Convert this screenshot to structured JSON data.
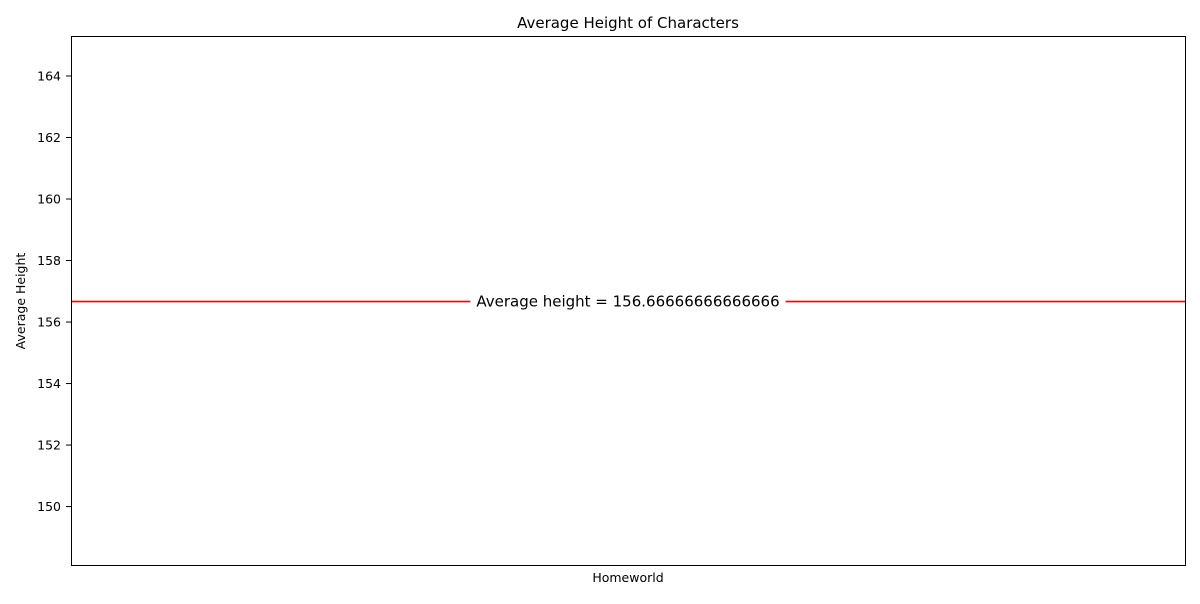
{
  "chart_data": {
    "type": "line",
    "title": "Average Height of Characters",
    "xlabel": "Homeworld",
    "ylabel": "Average Height",
    "ylim": [
      148.1,
      165.3
    ],
    "yticks": [
      150,
      152,
      154,
      156,
      158,
      160,
      162,
      164
    ],
    "categories": [],
    "series": [],
    "reference_line": {
      "y": 156.66666666666666,
      "color": "#ff0000",
      "label": "Average height = 156.66666666666666"
    },
    "grid": false
  }
}
